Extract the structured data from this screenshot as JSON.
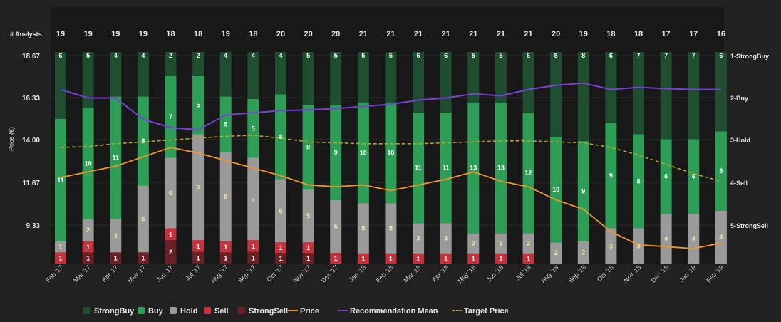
{
  "chart_data": {
    "type": "bar",
    "title": "",
    "analysts_label": "# Analysts",
    "ylabel": "Price (€)",
    "y_ticks": [
      "18.67",
      "16.33",
      "14.00",
      "11.67",
      "9.33"
    ],
    "right_ticks": [
      "1-StrongBuy",
      "2-Buy",
      "3-Hold",
      "4-Sell",
      "5-StrongSell"
    ],
    "categories": [
      "Feb '17",
      "Mar '17",
      "Apr '17",
      "May '17",
      "Jun '17",
      "Jul '17",
      "Aug '17",
      "Sep '17",
      "Oct '17",
      "Nov '17",
      "Dec '17",
      "Jan '18",
      "Feb '18",
      "Mar '18",
      "Apr '18",
      "May '18",
      "Jun '18",
      "Jul '18",
      "Aug '18",
      "Sep '18",
      "Oct '18",
      "Nov '18",
      "Dec '18",
      "Jan '19",
      "Feb '19"
    ],
    "analysts": [
      19,
      19,
      19,
      19,
      18,
      18,
      19,
      18,
      20,
      20,
      20,
      21,
      21,
      21,
      21,
      21,
      21,
      21,
      20,
      19,
      18,
      18,
      17,
      17,
      16
    ],
    "series": [
      {
        "name": "StrongBuy",
        "color": "#1e4d2f",
        "values": [
          6,
          5,
          4,
          4,
          2,
          2,
          4,
          4,
          4,
          5,
          5,
          5,
          5,
          6,
          6,
          5,
          5,
          6,
          8,
          8,
          6,
          7,
          7,
          7,
          6
        ]
      },
      {
        "name": "Buy",
        "color": "#2e9e57",
        "values": [
          11,
          10,
          11,
          8,
          7,
          5,
          5,
          5,
          8,
          8,
          9,
          10,
          10,
          11,
          11,
          13,
          13,
          12,
          10,
          9,
          9,
          8,
          6,
          6,
          6
        ]
      },
      {
        "name": "Hold",
        "color": "#9a9a9a",
        "values": [
          1,
          2,
          3,
          6,
          6,
          9,
          8,
          7,
          6,
          5,
          5,
          5,
          5,
          3,
          3,
          2,
          2,
          2,
          2,
          2,
          3,
          3,
          4,
          4,
          4
        ]
      },
      {
        "name": "Sell",
        "color": "#c4323b",
        "values": [
          1,
          1,
          0,
          0,
          1,
          1,
          1,
          1,
          1,
          1,
          1,
          1,
          1,
          1,
          1,
          1,
          1,
          1,
          0,
          0,
          0,
          0,
          0,
          0,
          0
        ]
      },
      {
        "name": "StrongSell",
        "color": "#6a2024",
        "values": [
          0,
          1,
          1,
          1,
          2,
          1,
          1,
          1,
          1,
          1,
          0,
          0,
          0,
          0,
          0,
          0,
          0,
          0,
          0,
          0,
          0,
          0,
          0,
          0,
          0
        ]
      }
    ],
    "price": [
      12.3,
      12.6,
      12.9,
      13.4,
      13.9,
      13.6,
      13.2,
      12.8,
      12.4,
      11.9,
      11.8,
      11.9,
      11.6,
      11.9,
      12.2,
      12.6,
      12.1,
      11.8,
      11.1,
      10.6,
      9.4,
      8.7,
      8.6,
      8.5,
      8.8
    ],
    "recommendation_mean": [
      1.8,
      2.0,
      2.0,
      2.5,
      2.7,
      2.75,
      2.4,
      2.35,
      2.3,
      2.28,
      2.25,
      2.2,
      2.15,
      2.05,
      2.0,
      1.9,
      1.95,
      1.8,
      1.7,
      1.65,
      1.8,
      1.75,
      1.78,
      1.8,
      1.8
    ],
    "target_price": [
      13.9,
      13.95,
      14.1,
      14.2,
      14.3,
      14.4,
      14.5,
      14.55,
      14.4,
      14.2,
      14.15,
      14.1,
      14.1,
      14.1,
      14.15,
      14.2,
      14.25,
      14.25,
      14.2,
      14.15,
      13.9,
      13.5,
      13.0,
      12.5,
      12.1
    ],
    "price_ylim": [
      7.7,
      19.0
    ],
    "legend": [
      {
        "name": "StrongBuy",
        "kind": "box",
        "color": "#1e4d2f"
      },
      {
        "name": "Buy",
        "kind": "box",
        "color": "#2e9e57"
      },
      {
        "name": "Hold",
        "kind": "box",
        "color": "#9a9a9a"
      },
      {
        "name": "Sell",
        "kind": "box",
        "color": "#c4323b"
      },
      {
        "name": "StrongSell",
        "kind": "box",
        "color": "#6a2024"
      },
      {
        "name": "Price",
        "kind": "line",
        "color": "#f0952e"
      },
      {
        "name": "Recommendation Mean",
        "kind": "line",
        "color": "#7a40d8"
      },
      {
        "name": "Target Price",
        "kind": "dash",
        "color": "#b5a030"
      }
    ],
    "legend_position": "bottom"
  }
}
